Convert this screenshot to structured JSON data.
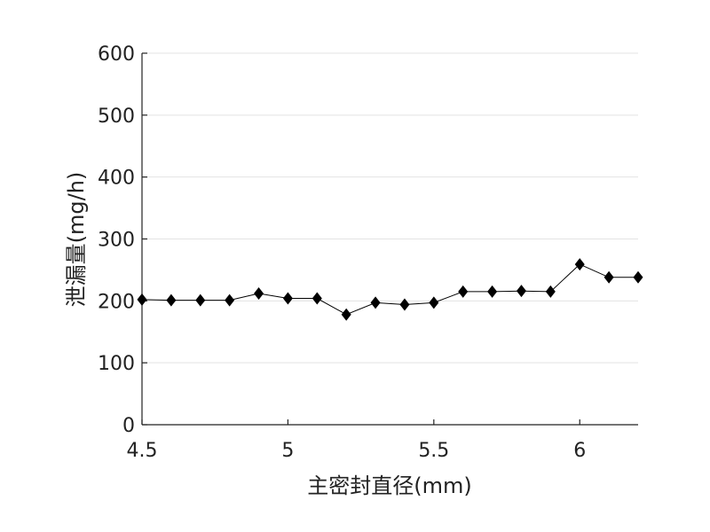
{
  "chart_data": {
    "type": "line",
    "title": "",
    "xlabel": "主密封直径(mm)",
    "ylabel": "泄漏量(mg/h)",
    "xlim": [
      4.5,
      6.2
    ],
    "ylim": [
      0,
      600
    ],
    "xticks": [
      4.5,
      5,
      5.5,
      6
    ],
    "xtick_labels": [
      "4.5",
      "5",
      "5.5",
      "6"
    ],
    "yticks": [
      0,
      100,
      200,
      300,
      400,
      500,
      600
    ],
    "ytick_labels": [
      "0",
      "100",
      "200",
      "300",
      "400",
      "500",
      "600"
    ],
    "grid": "horizontal",
    "legend": "none",
    "series": [
      {
        "marker": "diamond",
        "color": "#000000",
        "x": [
          4.5,
          4.6,
          4.7,
          4.8,
          4.9,
          5.0,
          5.1,
          5.2,
          5.3,
          5.4,
          5.5,
          5.6,
          5.7,
          5.8,
          5.9,
          6.0,
          6.1,
          6.2
        ],
        "y": [
          202,
          201,
          201,
          201,
          212,
          204,
          204,
          178,
          197,
          194,
          197,
          215,
          215,
          216,
          215,
          259,
          238,
          238
        ]
      }
    ]
  }
}
